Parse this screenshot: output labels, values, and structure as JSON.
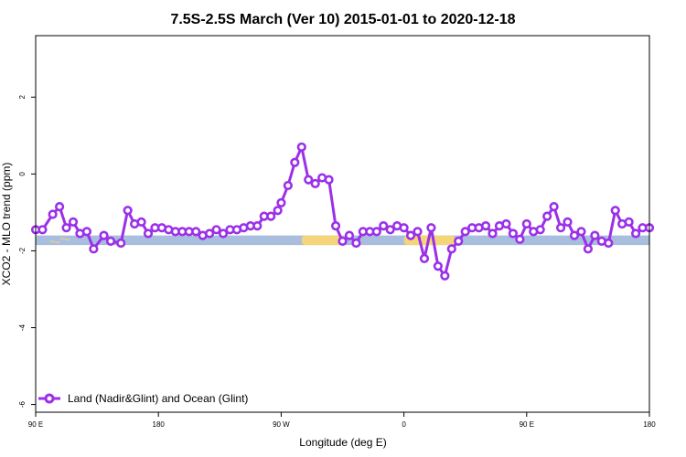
{
  "chart_data": {
    "type": "line",
    "title": "7.5S-2.5S March (Ver 10)   2015-01-01 to 2020-12-18",
    "xlabel": "Longitude (deg E)",
    "ylabel": "XCO2 - MLO trend (ppm)",
    "xlim": [
      90,
      450
    ],
    "ylim": [
      -6.2,
      3.6
    ],
    "x_ticks": [
      {
        "value": 90,
        "label": "90 E"
      },
      {
        "value": 162,
        "label": "180"
      },
      {
        "value": 234,
        "label": "90 W"
      },
      {
        "value": 306,
        "label": "0"
      },
      {
        "value": 378,
        "label": "90 E"
      },
      {
        "value": 450,
        "label": "180"
      }
    ],
    "y_ticks": [
      {
        "value": 2,
        "label": "2"
      },
      {
        "value": 0,
        "label": "0"
      },
      {
        "value": -2,
        "label": "-2"
      },
      {
        "value": -4,
        "label": "-4"
      },
      {
        "value": -6,
        "label": "-6"
      }
    ],
    "grid": false,
    "legend_position": "bottom-left",
    "series": [
      {
        "name": "Land (Nadir&Glint) and Ocean (Glint)",
        "color": "#9b30e8",
        "x": [
          90,
          94,
          100,
          104,
          108,
          112,
          116,
          120,
          124,
          130,
          134,
          140,
          144,
          148,
          152,
          156,
          160,
          164,
          168,
          172,
          176,
          180,
          184,
          188,
          192,
          196,
          200,
          204,
          208,
          212,
          216,
          220,
          224,
          228,
          232,
          234,
          238,
          242,
          246,
          250,
          254,
          258,
          262,
          266,
          270,
          274,
          278,
          282,
          286,
          290,
          294,
          298,
          302,
          306,
          310,
          314,
          318,
          322,
          326,
          330,
          334,
          338,
          342,
          346,
          350,
          354,
          358,
          362,
          366,
          370,
          374,
          378,
          382,
          386,
          390,
          394,
          398,
          402,
          406,
          410,
          414,
          418,
          422,
          426,
          430,
          434,
          438,
          442,
          446,
          450
        ],
        "y": [
          -1.45,
          -1.45,
          -1.05,
          -0.85,
          -1.4,
          -1.25,
          -1.55,
          -1.5,
          -1.95,
          -1.6,
          -1.75,
          -1.8,
          -0.95,
          -1.3,
          -1.25,
          -1.55,
          -1.4,
          -1.4,
          -1.45,
          -1.5,
          -1.5,
          -1.5,
          -1.5,
          -1.6,
          -1.55,
          -1.45,
          -1.55,
          -1.45,
          -1.45,
          -1.4,
          -1.35,
          -1.35,
          -1.1,
          -1.1,
          -0.95,
          -0.75,
          -0.3,
          0.3,
          0.7,
          -0.15,
          -0.25,
          -0.1,
          -0.15,
          -1.35,
          -1.75,
          -1.6,
          -1.8,
          -1.5,
          -1.5,
          -1.5,
          -1.35,
          -1.45,
          -1.35,
          -1.4,
          -1.6,
          -1.5,
          -2.2,
          -1.4,
          -2.4,
          -2.65,
          -1.95,
          -1.75,
          -1.5,
          -1.4,
          -1.4,
          -1.35,
          -1.55,
          -1.35,
          -1.3,
          -1.55,
          -1.7,
          -1.3,
          -1.5,
          -1.45,
          -1.1,
          -0.85,
          -1.4,
          -1.25,
          -1.6,
          -1.5,
          -1.95,
          -1.6,
          -1.75,
          -1.8,
          -0.95,
          -1.3,
          -1.25,
          -1.55,
          -1.4,
          -1.4
        ]
      }
    ],
    "surface_band": {
      "y_top": -1.6,
      "y_bottom": -1.85,
      "ocean_color": "#a9bedf",
      "land_color": "#f5d57a"
    }
  }
}
